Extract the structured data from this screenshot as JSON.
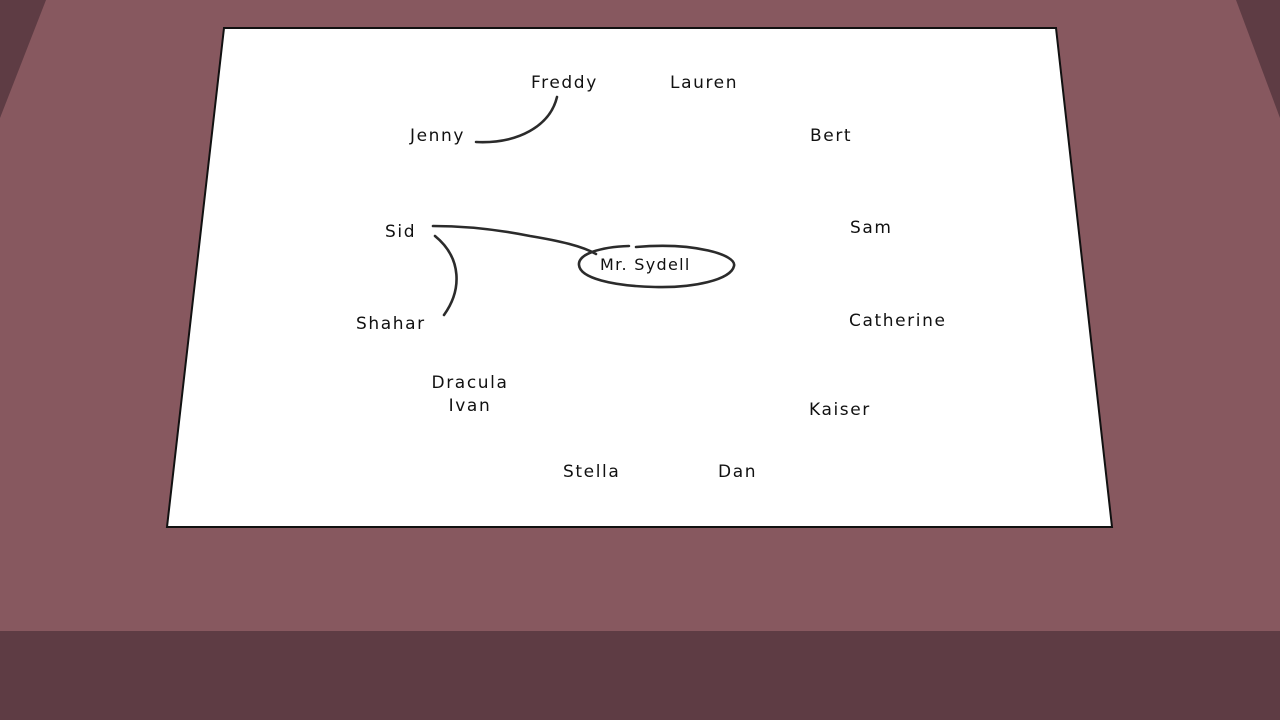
{
  "scene": {
    "colors": {
      "wall": "#87585f",
      "side_shadow": "#5e3c44",
      "floor": "#5e3c44",
      "paper": "#ffffff",
      "ink": "#111111",
      "line": "#2b2b2b"
    }
  },
  "names": {
    "freddy": "Freddy",
    "lauren": "Lauren",
    "jenny": "Jenny",
    "bert": "Bert",
    "sid": "Sid",
    "sam": "Sam",
    "mr_sydell": "Mr. Sydell",
    "shahar": "Shahar",
    "catherine": "Catherine",
    "dracula": "Dracula",
    "ivan": "Ivan",
    "kaiser": "Kaiser",
    "stella": "Stella",
    "dan": "Dan"
  }
}
